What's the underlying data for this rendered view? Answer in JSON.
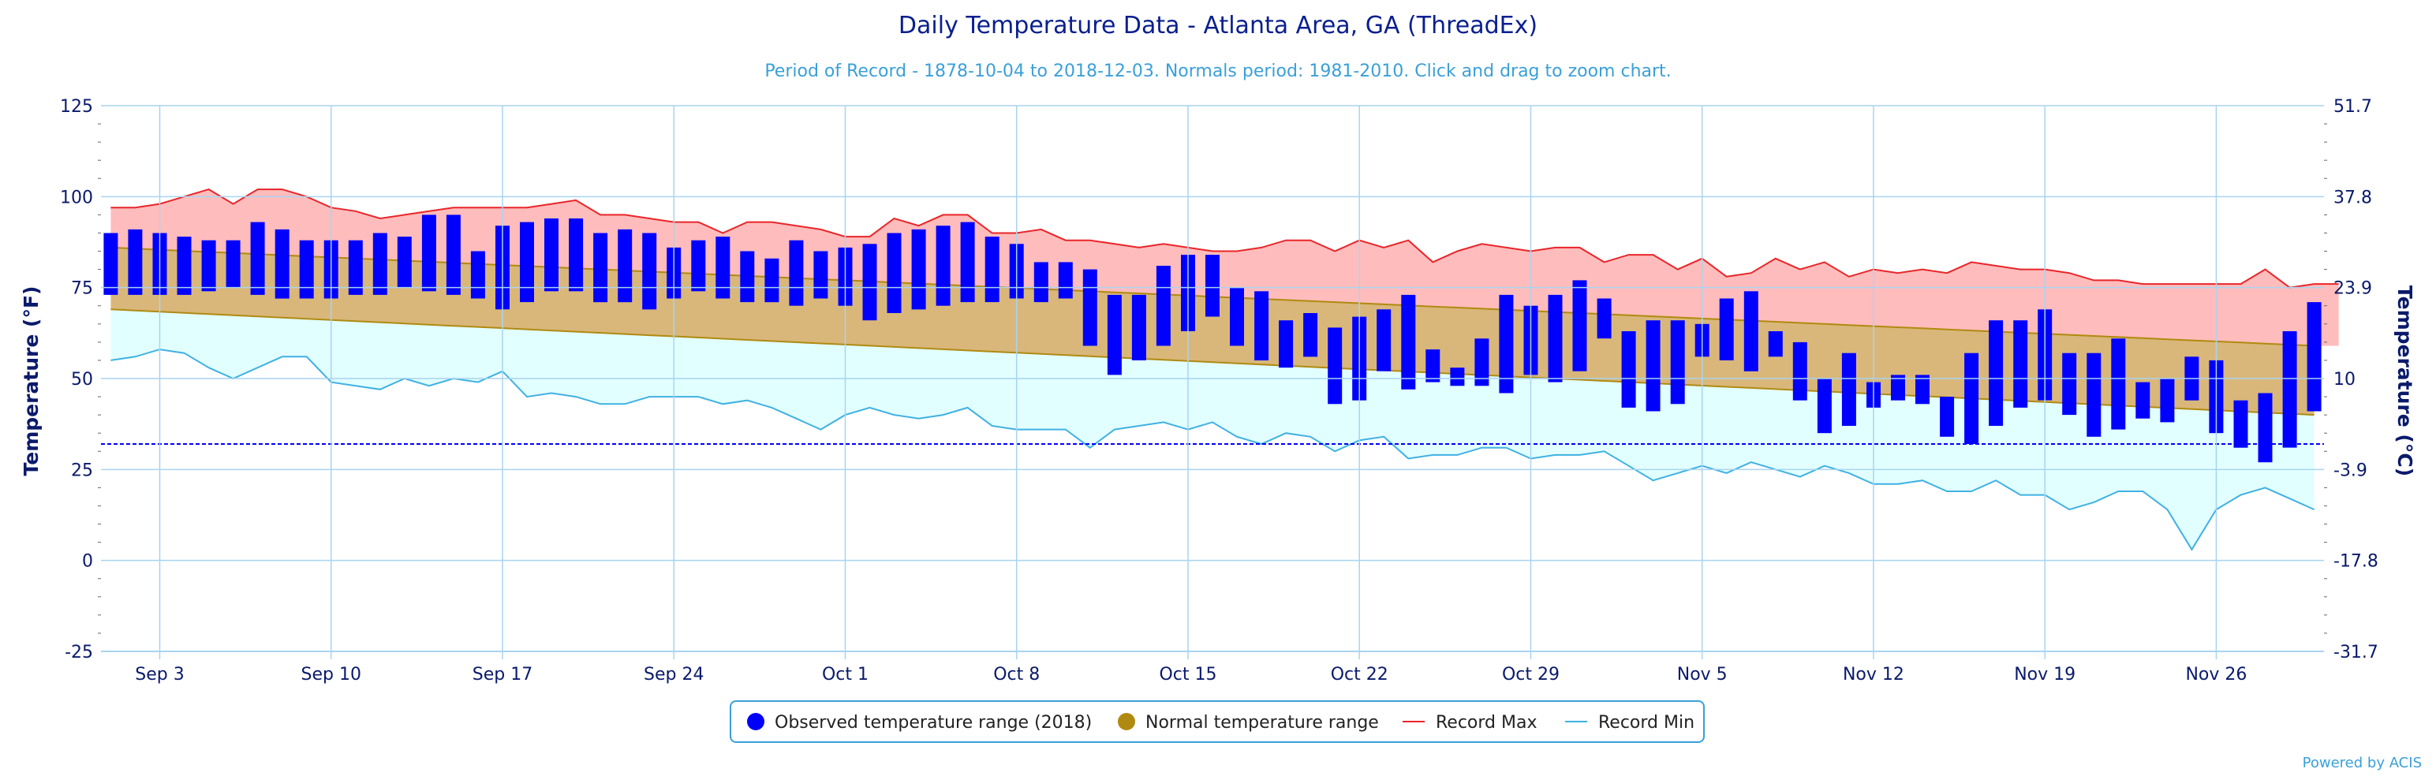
{
  "chart_data": {
    "type": "bar",
    "title": "Daily Temperature Data - Atlanta Area, GA (ThreadEx)",
    "subtitle": "Period of Record - 1878-10-04 to 2018-12-03. Normals period: 1981-2010. Click and drag to zoom chart.",
    "ylabel_left": "Temperature (°F)",
    "ylabel_right": "Temperature (°C)",
    "ylim": [
      -25,
      125
    ],
    "y_ticks": [
      "-25",
      "0",
      "25",
      "50",
      "75",
      "100",
      "125"
    ],
    "y_ticks_c": [
      "-31.7",
      "-17.8",
      "-3.9",
      "10",
      "23.9",
      "37.8",
      "51.7"
    ],
    "x_start": "2018-09-01",
    "x_end": "2018-11-30",
    "x_ticks": [
      {
        "label": "Sep 3",
        "date": "2018-09-03"
      },
      {
        "label": "Sep 10",
        "date": "2018-09-10"
      },
      {
        "label": "Sep 17",
        "date": "2018-09-17"
      },
      {
        "label": "Sep 24",
        "date": "2018-09-24"
      },
      {
        "label": "Oct 1",
        "date": "2018-10-01"
      },
      {
        "label": "Oct 8",
        "date": "2018-10-08"
      },
      {
        "label": "Oct 15",
        "date": "2018-10-15"
      },
      {
        "label": "Oct 22",
        "date": "2018-10-22"
      },
      {
        "label": "Oct 29",
        "date": "2018-10-29"
      },
      {
        "label": "Nov 5",
        "date": "2018-11-05"
      },
      {
        "label": "Nov 12",
        "date": "2018-11-12"
      },
      {
        "label": "Nov 19",
        "date": "2018-11-19"
      },
      {
        "label": "Nov 26",
        "date": "2018-11-26"
      }
    ],
    "freezing_line": 32,
    "grid": true,
    "legend_position": "bottom-center",
    "colors": {
      "observed": "#0000ff",
      "normal_fill": "#d9b77a",
      "normal_line": "#b08a10",
      "record_max_line": "#e8262a",
      "record_max_fill": "#ffbcbc",
      "record_min_line": "#3fb1e3",
      "record_min_fill": "#e2ffff",
      "grid": "#a8d4f0",
      "freezing": "#0000ff"
    },
    "legend": [
      {
        "label": "Observed temperature range (2018)",
        "symbol": "circle",
        "color": "#0000ff"
      },
      {
        "label": "Normal temperature range",
        "symbol": "circle",
        "color": "#b08a10"
      },
      {
        "label": "Record Max",
        "symbol": "line",
        "color": "#e8262a"
      },
      {
        "label": "Record Min",
        "symbol": "line",
        "color": "#3fb1e3"
      }
    ],
    "normal_max": {
      "start": 86,
      "end": 59
    },
    "normal_min": {
      "start": 69,
      "end": 40
    },
    "observed": [
      [
        73,
        90
      ],
      [
        73,
        91
      ],
      [
        73,
        90
      ],
      [
        73,
        89
      ],
      [
        74,
        88
      ],
      [
        75,
        88
      ],
      [
        73,
        93
      ],
      [
        72,
        91
      ],
      [
        72,
        88
      ],
      [
        72,
        88
      ],
      [
        73,
        88
      ],
      [
        73,
        90
      ],
      [
        75,
        89
      ],
      [
        74,
        95
      ],
      [
        73,
        95
      ],
      [
        72,
        85
      ],
      [
        69,
        92
      ],
      [
        71,
        93
      ],
      [
        74,
        94
      ],
      [
        74,
        94
      ],
      [
        71,
        90
      ],
      [
        71,
        91
      ],
      [
        69,
        90
      ],
      [
        72,
        86
      ],
      [
        74,
        88
      ],
      [
        72,
        89
      ],
      [
        71,
        85
      ],
      [
        71,
        83
      ],
      [
        70,
        88
      ],
      [
        72,
        85
      ],
      [
        70,
        86
      ],
      [
        66,
        87
      ],
      [
        68,
        90
      ],
      [
        69,
        91
      ],
      [
        70,
        92
      ],
      [
        71,
        93
      ],
      [
        71,
        89
      ],
      [
        72,
        87
      ],
      [
        71,
        82
      ],
      [
        72,
        82
      ],
      [
        59,
        80
      ],
      [
        51,
        73
      ],
      [
        55,
        73
      ],
      [
        59,
        81
      ],
      [
        63,
        84
      ],
      [
        67,
        84
      ],
      [
        59,
        75
      ],
      [
        55,
        74
      ],
      [
        53,
        66
      ],
      [
        56,
        68
      ],
      [
        43,
        64
      ],
      [
        44,
        67
      ],
      [
        52,
        69
      ],
      [
        47,
        73
      ],
      [
        49,
        58
      ],
      [
        48,
        53
      ],
      [
        48,
        61
      ],
      [
        46,
        73
      ],
      [
        51,
        70
      ],
      [
        49,
        73
      ],
      [
        52,
        77
      ],
      [
        61,
        72
      ],
      [
        42,
        63
      ],
      [
        41,
        66
      ],
      [
        43,
        66
      ],
      [
        56,
        65
      ],
      [
        55,
        72
      ],
      [
        52,
        74
      ],
      [
        56,
        63
      ],
      [
        44,
        60
      ],
      [
        35,
        50
      ],
      [
        37,
        57
      ],
      [
        42,
        49
      ],
      [
        44,
        51
      ],
      [
        43,
        51
      ],
      [
        34,
        45
      ],
      [
        32,
        57
      ],
      [
        37,
        66
      ],
      [
        42,
        66
      ],
      [
        44,
        69
      ],
      [
        40,
        57
      ],
      [
        34,
        57
      ],
      [
        36,
        61
      ],
      [
        39,
        49
      ],
      [
        38,
        50
      ],
      [
        44,
        56
      ],
      [
        35,
        55
      ],
      [
        31,
        44
      ],
      [
        27,
        46
      ],
      [
        31,
        63
      ],
      [
        41,
        71
      ]
    ],
    "record_max": [
      97,
      97,
      98,
      100,
      102,
      98,
      102,
      102,
      100,
      97,
      96,
      94,
      95,
      96,
      97,
      97,
      97,
      97,
      98,
      99,
      95,
      95,
      94,
      93,
      93,
      90,
      93,
      93,
      92,
      91,
      89,
      89,
      94,
      92,
      95,
      95,
      90,
      90,
      91,
      88,
      88,
      87,
      86,
      87,
      86,
      85,
      85,
      86,
      88,
      88,
      85,
      88,
      86,
      88,
      82,
      85,
      87,
      86,
      85,
      86,
      86,
      82,
      84,
      84,
      80,
      83,
      78,
      79,
      83,
      80,
      82,
      78,
      80,
      79,
      80,
      79,
      82,
      81,
      80,
      80,
      79,
      77,
      77,
      76,
      76,
      76,
      76,
      76,
      80,
      75,
      76,
      76
    ],
    "record_min": [
      55,
      56,
      58,
      57,
      53,
      50,
      53,
      56,
      56,
      49,
      48,
      47,
      50,
      48,
      50,
      49,
      52,
      45,
      46,
      45,
      43,
      43,
      45,
      45,
      45,
      43,
      44,
      42,
      39,
      36,
      40,
      42,
      40,
      39,
      40,
      42,
      37,
      36,
      36,
      36,
      31,
      36,
      37,
      38,
      36,
      38,
      34,
      32,
      35,
      34,
      30,
      33,
      34,
      28,
      29,
      29,
      31,
      31,
      28,
      29,
      29,
      30,
      26,
      22,
      24,
      26,
      24,
      27,
      25,
      23,
      26,
      24,
      21,
      21,
      22,
      19,
      19,
      22,
      18,
      18,
      14,
      16,
      19,
      19,
      14,
      3,
      14,
      18,
      20,
      17,
      14
    ]
  },
  "credit": "Powered by ACIS"
}
